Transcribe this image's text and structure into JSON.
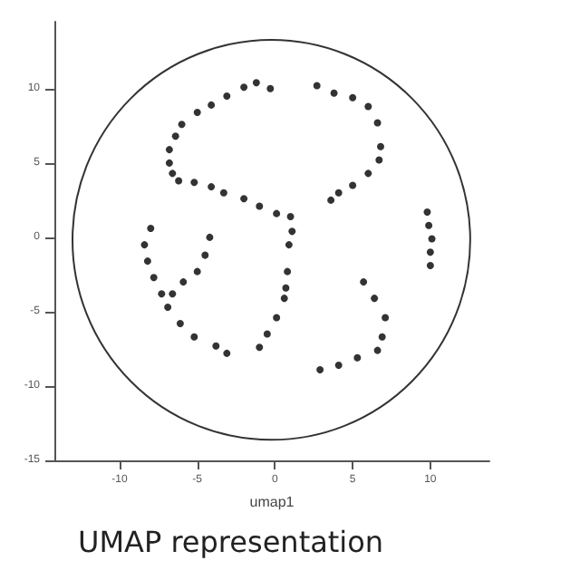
{
  "chart_data": {
    "type": "scatter",
    "title": "UMAP representation",
    "xlabel": "umap1",
    "xlim": [
      -14.2,
      13.8
    ],
    "ylim": [
      -15,
      14.5
    ],
    "xticks": [
      -10,
      -5,
      0,
      5,
      10
    ],
    "yticks": [
      -15,
      -10,
      -5,
      0,
      5,
      10
    ],
    "grid": false,
    "marker": "circle",
    "series": [
      {
        "color": "#000000",
        "x": [
          -5.0,
          -4.1,
          -3.1,
          -2.0,
          -1.2,
          -0.3,
          -6.0,
          -6.4,
          -6.8,
          -6.8,
          -6.6,
          -6.2,
          -5.2,
          -4.1,
          -3.3,
          -2.0,
          -1.0,
          0.1,
          1.0,
          1.1,
          0.9,
          2.7,
          3.8,
          5.0,
          6.0,
          6.6,
          6.8,
          6.7,
          6.0,
          5.0,
          4.1,
          3.6,
          9.8,
          9.9,
          10.1,
          10.0,
          10.0,
          -8.0,
          -8.4,
          -8.2,
          -7.8,
          -7.3,
          -6.9,
          -6.1,
          -5.2,
          -3.8,
          -3.1,
          -4.2,
          -4.5,
          -5.0,
          -5.9,
          -6.6,
          0.8,
          0.7,
          0.6,
          0.1,
          -0.5,
          -1.0,
          5.7,
          6.4,
          7.1,
          6.9,
          6.6,
          5.3,
          4.1,
          2.9
        ],
        "values": [
          8.4,
          8.9,
          9.5,
          10.1,
          10.4,
          10.0,
          7.6,
          6.8,
          5.9,
          5.0,
          4.3,
          3.8,
          3.7,
          3.4,
          3.0,
          2.6,
          2.1,
          1.6,
          1.4,
          0.4,
          -0.5,
          10.2,
          9.7,
          9.4,
          8.8,
          7.7,
          6.1,
          5.2,
          4.3,
          3.5,
          3.0,
          2.5,
          1.7,
          0.8,
          -0.1,
          -1.0,
          -1.9,
          0.6,
          -0.5,
          -1.6,
          -2.7,
          -3.8,
          -4.7,
          -5.8,
          -6.7,
          -7.3,
          -7.8,
          0.0,
          -1.2,
          -2.3,
          -3.0,
          -3.8,
          -2.3,
          -3.4,
          -4.1,
          -5.4,
          -6.5,
          -7.4,
          -3.0,
          -4.1,
          -5.4,
          -6.7,
          -7.6,
          -8.1,
          -8.6,
          -8.9
        ]
      }
    ]
  }
}
